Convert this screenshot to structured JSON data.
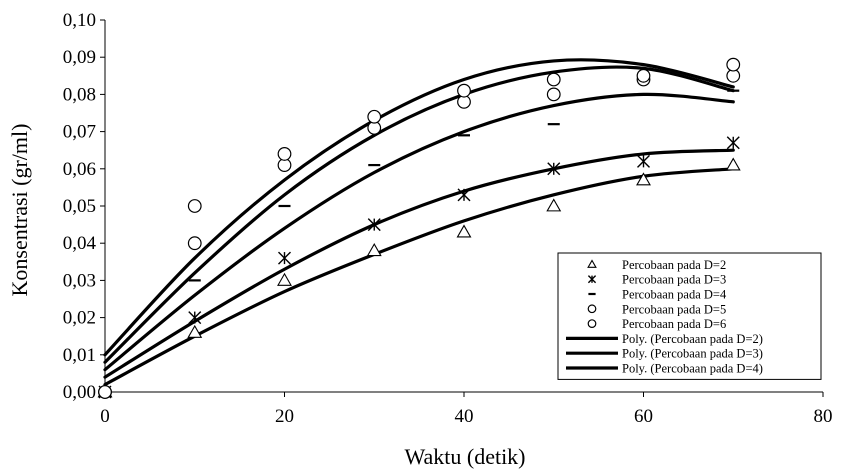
{
  "chart_data": {
    "type": "scatter",
    "title": "",
    "xlabel": "Waktu (detik)",
    "ylabel": "Konsentrasi (gr/ml)",
    "xlim": [
      0,
      80
    ],
    "ylim": [
      0,
      0.1
    ],
    "xticks": [
      0,
      20,
      40,
      60,
      80
    ],
    "xtick_labels": [
      "0",
      "20",
      "40",
      "60",
      "80"
    ],
    "yticks": [
      0,
      0.01,
      0.02,
      0.03,
      0.04,
      0.05,
      0.06,
      0.07,
      0.08,
      0.09,
      0.1
    ],
    "ytick_labels": [
      "0,00",
      "0,01",
      "0,02",
      "0,03",
      "0,04",
      "0,05",
      "0,06",
      "0,07",
      "0,08",
      "0,09",
      "0,10"
    ],
    "grid": false,
    "legend_position": "bottom-right",
    "series": [
      {
        "name": "Percobaan pada D=2",
        "marker": "triangle",
        "x": [
          0,
          10,
          20,
          30,
          40,
          50,
          60,
          70
        ],
        "y": [
          0.0,
          0.016,
          0.03,
          0.038,
          0.043,
          0.05,
          0.057,
          0.061
        ]
      },
      {
        "name": "Percobaan pada D=3",
        "marker": "star",
        "x": [
          0,
          10,
          20,
          30,
          40,
          50,
          60,
          70
        ],
        "y": [
          0.0,
          0.02,
          0.036,
          0.045,
          0.053,
          0.06,
          0.062,
          0.067
        ]
      },
      {
        "name": "Percobaan pada D=4",
        "marker": "dash",
        "x": [
          0,
          10,
          20,
          30,
          40,
          50,
          60,
          70
        ],
        "y": [
          0.0,
          0.03,
          0.05,
          0.061,
          0.069,
          0.072,
          0.08,
          0.081
        ]
      },
      {
        "name": "Percobaan pada D=5",
        "marker": "circle",
        "x": [
          0,
          10,
          20,
          30,
          40,
          50,
          60,
          70
        ],
        "y": [
          0.0,
          0.04,
          0.061,
          0.071,
          0.078,
          0.08,
          0.084,
          0.085
        ]
      },
      {
        "name": "Percobaan pada D=6",
        "marker": "circle",
        "x": [
          0,
          10,
          20,
          30,
          40,
          50,
          60,
          70
        ],
        "y": [
          0.0,
          0.05,
          0.064,
          0.074,
          0.081,
          0.084,
          0.085,
          0.088
        ]
      }
    ],
    "trendlines": [
      {
        "name": "Poly. (Percobaan pada D=2)",
        "in_legend": true,
        "x": [
          0,
          10,
          20,
          30,
          40,
          50,
          60,
          70
        ],
        "y": [
          0.002,
          0.015,
          0.027,
          0.037,
          0.046,
          0.053,
          0.058,
          0.06
        ]
      },
      {
        "name": "Poly. (Percobaan pada D=3)",
        "in_legend": true,
        "x": [
          0,
          10,
          20,
          30,
          40,
          50,
          60,
          70
        ],
        "y": [
          0.004,
          0.019,
          0.033,
          0.045,
          0.054,
          0.06,
          0.064,
          0.065
        ]
      },
      {
        "name": "Poly. (Percobaan pada D=4)",
        "in_legend": true,
        "x": [
          0,
          10,
          20,
          30,
          40,
          50,
          60,
          70
        ],
        "y": [
          0.006,
          0.026,
          0.044,
          0.059,
          0.07,
          0.077,
          0.08,
          0.078
        ]
      },
      {
        "name": "",
        "in_legend": false,
        "x": [
          0,
          10,
          20,
          30,
          40,
          50,
          60,
          70
        ],
        "y": [
          0.008,
          0.032,
          0.053,
          0.069,
          0.08,
          0.086,
          0.087,
          0.081
        ]
      },
      {
        "name": "",
        "in_legend": false,
        "x": [
          0,
          10,
          20,
          30,
          40,
          50,
          60,
          70
        ],
        "y": [
          0.01,
          0.036,
          0.057,
          0.073,
          0.084,
          0.089,
          0.088,
          0.082
        ]
      }
    ]
  }
}
